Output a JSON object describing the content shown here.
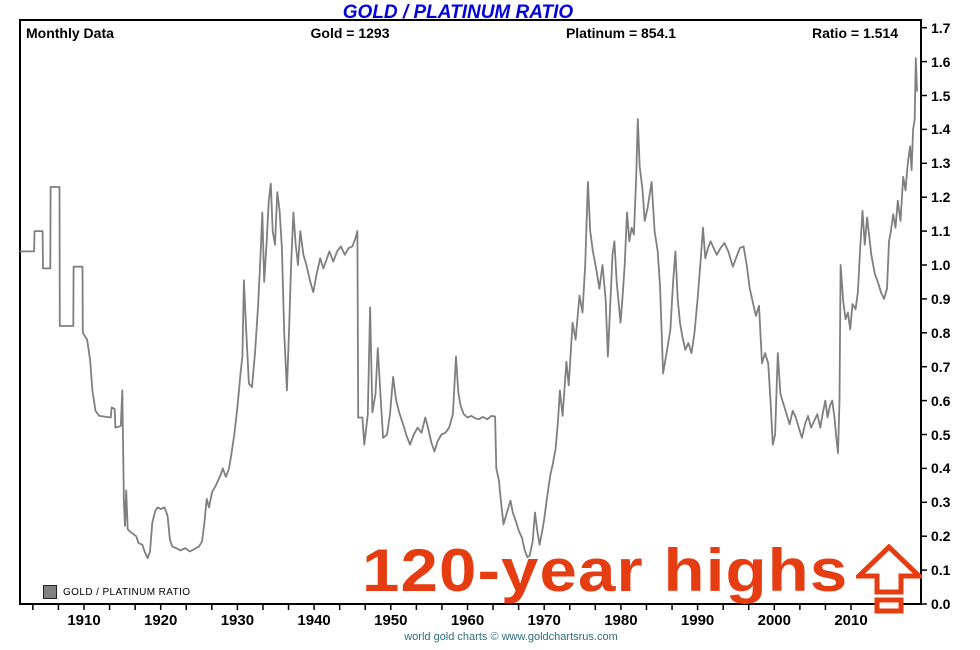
{
  "title": "GOLD / PLATINUM RATIO",
  "title_color": "#0202dd",
  "header": {
    "left_label": "Monthly Data",
    "gold": "Gold = 1293",
    "platinum": "Platinum = 854.1",
    "ratio": "Ratio = 1.514"
  },
  "legend": {
    "label": "GOLD / PLATINUM RATIO",
    "swatch_color": "#808080"
  },
  "annotation": {
    "text": "120-year highs",
    "color": "#e63c12",
    "icon": "up-arrow-icon"
  },
  "attribution": {
    "text": "world gold charts © www.goldchartsrus.com",
    "color": "#2d6d7d"
  },
  "chart_data": {
    "type": "line",
    "title": "GOLD / PLATINUM RATIO",
    "series_name": "GOLD / PLATINUM RATIO",
    "line_color": "#7f7f7f",
    "grid": false,
    "legend_position": "bottom-left",
    "ylim": [
      0.0,
      1.7
    ],
    "y_tick_step": 0.1,
    "y_axis_side": "right",
    "x_range_years": [
      1901.7,
      2018.6
    ],
    "x_tick_labels": [
      "1910",
      "1920",
      "1930",
      "1940",
      "1950",
      "1960",
      "1970",
      "1980",
      "1990",
      "2000",
      "2010"
    ],
    "xlabel": "",
    "ylabel": "",
    "points": [
      [
        1901.7,
        1.04
      ],
      [
        1903.5,
        1.04
      ],
      [
        1903.55,
        1.1
      ],
      [
        1904.6,
        1.1
      ],
      [
        1904.65,
        0.99
      ],
      [
        1905.6,
        0.99
      ],
      [
        1905.65,
        1.23
      ],
      [
        1906.8,
        1.23
      ],
      [
        1906.85,
        0.82
      ],
      [
        1908.6,
        0.82
      ],
      [
        1908.65,
        0.995
      ],
      [
        1909.8,
        0.995
      ],
      [
        1909.85,
        0.8
      ],
      [
        1910.4,
        0.78
      ],
      [
        1910.8,
        0.72
      ],
      [
        1911.1,
        0.63
      ],
      [
        1911.5,
        0.57
      ],
      [
        1912.0,
        0.555
      ],
      [
        1913.5,
        0.55
      ],
      [
        1913.6,
        0.58
      ],
      [
        1914.0,
        0.575
      ],
      [
        1914.1,
        0.52
      ],
      [
        1914.8,
        0.525
      ],
      [
        1915.0,
        0.63
      ],
      [
        1915.2,
        0.3
      ],
      [
        1915.35,
        0.23
      ],
      [
        1915.5,
        0.335
      ],
      [
        1915.7,
        0.22
      ],
      [
        1916.2,
        0.21
      ],
      [
        1916.8,
        0.2
      ],
      [
        1917.1,
        0.18
      ],
      [
        1917.6,
        0.175
      ],
      [
        1917.9,
        0.155
      ],
      [
        1918.3,
        0.135
      ],
      [
        1918.6,
        0.155
      ],
      [
        1918.9,
        0.24
      ],
      [
        1919.3,
        0.275
      ],
      [
        1919.6,
        0.285
      ],
      [
        1920.0,
        0.28
      ],
      [
        1920.5,
        0.285
      ],
      [
        1920.9,
        0.26
      ],
      [
        1921.2,
        0.19
      ],
      [
        1921.5,
        0.17
      ],
      [
        1922.0,
        0.165
      ],
      [
        1922.6,
        0.158
      ],
      [
        1923.2,
        0.165
      ],
      [
        1923.8,
        0.155
      ],
      [
        1924.4,
        0.162
      ],
      [
        1925.0,
        0.17
      ],
      [
        1925.4,
        0.185
      ],
      [
        1925.7,
        0.24
      ],
      [
        1926.0,
        0.31
      ],
      [
        1926.3,
        0.285
      ],
      [
        1926.7,
        0.33
      ],
      [
        1927.2,
        0.35
      ],
      [
        1927.8,
        0.38
      ],
      [
        1928.1,
        0.4
      ],
      [
        1928.5,
        0.375
      ],
      [
        1928.9,
        0.4
      ],
      [
        1929.2,
        0.44
      ],
      [
        1929.6,
        0.5
      ],
      [
        1930.0,
        0.58
      ],
      [
        1930.4,
        0.68
      ],
      [
        1930.65,
        0.73
      ],
      [
        1930.85,
        0.955
      ],
      [
        1931.1,
        0.83
      ],
      [
        1931.5,
        0.65
      ],
      [
        1931.9,
        0.64
      ],
      [
        1932.3,
        0.74
      ],
      [
        1932.7,
        0.88
      ],
      [
        1933.0,
        1.02
      ],
      [
        1933.25,
        1.155
      ],
      [
        1933.5,
        0.95
      ],
      [
        1933.8,
        1.06
      ],
      [
        1934.1,
        1.19
      ],
      [
        1934.35,
        1.24
      ],
      [
        1934.6,
        1.1
      ],
      [
        1934.9,
        1.06
      ],
      [
        1935.2,
        1.215
      ],
      [
        1935.5,
        1.16
      ],
      [
        1935.8,
        1.05
      ],
      [
        1936.1,
        0.8
      ],
      [
        1936.45,
        0.63
      ],
      [
        1936.75,
        0.82
      ],
      [
        1937.0,
        1.0
      ],
      [
        1937.3,
        1.155
      ],
      [
        1937.6,
        1.06
      ],
      [
        1937.9,
        1.0
      ],
      [
        1938.2,
        1.1
      ],
      [
        1938.6,
        1.03
      ],
      [
        1939.0,
        1.0
      ],
      [
        1939.5,
        0.95
      ],
      [
        1939.9,
        0.92
      ],
      [
        1940.3,
        0.97
      ],
      [
        1940.8,
        1.02
      ],
      [
        1941.2,
        0.99
      ],
      [
        1941.6,
        1.015
      ],
      [
        1942.0,
        1.04
      ],
      [
        1942.5,
        1.01
      ],
      [
        1943.0,
        1.04
      ],
      [
        1943.5,
        1.055
      ],
      [
        1944.0,
        1.03
      ],
      [
        1944.5,
        1.05
      ],
      [
        1945.0,
        1.055
      ],
      [
        1945.4,
        1.08
      ],
      [
        1945.65,
        1.1
      ],
      [
        1945.75,
        0.55
      ],
      [
        1946.3,
        0.55
      ],
      [
        1946.55,
        0.47
      ],
      [
        1947.0,
        0.56
      ],
      [
        1947.3,
        0.875
      ],
      [
        1947.6,
        0.565
      ],
      [
        1948.0,
        0.62
      ],
      [
        1948.3,
        0.755
      ],
      [
        1948.7,
        0.6
      ],
      [
        1949.0,
        0.49
      ],
      [
        1949.5,
        0.5
      ],
      [
        1949.9,
        0.56
      ],
      [
        1950.3,
        0.67
      ],
      [
        1950.7,
        0.6
      ],
      [
        1951.1,
        0.565
      ],
      [
        1951.6,
        0.53
      ],
      [
        1952.0,
        0.5
      ],
      [
        1952.5,
        0.47
      ],
      [
        1953.0,
        0.5
      ],
      [
        1953.5,
        0.52
      ],
      [
        1954.0,
        0.505
      ],
      [
        1954.5,
        0.55
      ],
      [
        1954.9,
        0.515
      ],
      [
        1955.3,
        0.475
      ],
      [
        1955.7,
        0.45
      ],
      [
        1956.1,
        0.48
      ],
      [
        1956.6,
        0.5
      ],
      [
        1957.1,
        0.505
      ],
      [
        1957.6,
        0.52
      ],
      [
        1958.1,
        0.56
      ],
      [
        1958.5,
        0.73
      ],
      [
        1958.8,
        0.625
      ],
      [
        1959.1,
        0.585
      ],
      [
        1959.5,
        0.56
      ],
      [
        1960.0,
        0.55
      ],
      [
        1960.5,
        0.555
      ],
      [
        1961.0,
        0.548
      ],
      [
        1961.5,
        0.545
      ],
      [
        1962.0,
        0.552
      ],
      [
        1962.6,
        0.545
      ],
      [
        1963.1,
        0.555
      ],
      [
        1963.6,
        0.553
      ],
      [
        1963.75,
        0.4
      ],
      [
        1964.1,
        0.365
      ],
      [
        1964.4,
        0.295
      ],
      [
        1964.7,
        0.235
      ],
      [
        1965.0,
        0.26
      ],
      [
        1965.35,
        0.285
      ],
      [
        1965.6,
        0.305
      ],
      [
        1965.9,
        0.27
      ],
      [
        1966.3,
        0.245
      ],
      [
        1966.7,
        0.215
      ],
      [
        1967.1,
        0.195
      ],
      [
        1967.45,
        0.16
      ],
      [
        1967.8,
        0.138
      ],
      [
        1968.1,
        0.142
      ],
      [
        1968.5,
        0.185
      ],
      [
        1968.8,
        0.27
      ],
      [
        1969.1,
        0.215
      ],
      [
        1969.4,
        0.175
      ],
      [
        1969.7,
        0.21
      ],
      [
        1970.0,
        0.25
      ],
      [
        1970.4,
        0.32
      ],
      [
        1970.8,
        0.38
      ],
      [
        1971.1,
        0.41
      ],
      [
        1971.5,
        0.46
      ],
      [
        1971.8,
        0.54
      ],
      [
        1972.05,
        0.63
      ],
      [
        1972.4,
        0.555
      ],
      [
        1972.9,
        0.715
      ],
      [
        1973.2,
        0.645
      ],
      [
        1973.7,
        0.83
      ],
      [
        1974.1,
        0.78
      ],
      [
        1974.6,
        0.91
      ],
      [
        1975.0,
        0.86
      ],
      [
        1975.35,
        1.0
      ],
      [
        1975.7,
        1.245
      ],
      [
        1976.0,
        1.1
      ],
      [
        1976.35,
        1.04
      ],
      [
        1976.8,
        0.985
      ],
      [
        1977.2,
        0.93
      ],
      [
        1977.6,
        1.0
      ],
      [
        1978.0,
        0.9
      ],
      [
        1978.3,
        0.73
      ],
      [
        1978.65,
        0.9
      ],
      [
        1978.9,
        1.03
      ],
      [
        1979.15,
        1.07
      ],
      [
        1979.45,
        0.95
      ],
      [
        1979.7,
        0.89
      ],
      [
        1979.95,
        0.83
      ],
      [
        1980.2,
        0.9
      ],
      [
        1980.5,
        1.0
      ],
      [
        1980.8,
        1.155
      ],
      [
        1981.1,
        1.07
      ],
      [
        1981.4,
        1.11
      ],
      [
        1981.7,
        1.09
      ],
      [
        1982.0,
        1.26
      ],
      [
        1982.2,
        1.43
      ],
      [
        1982.45,
        1.29
      ],
      [
        1982.8,
        1.225
      ],
      [
        1983.1,
        1.13
      ],
      [
        1983.5,
        1.17
      ],
      [
        1984.0,
        1.245
      ],
      [
        1984.4,
        1.1
      ],
      [
        1984.8,
        1.04
      ],
      [
        1985.1,
        0.94
      ],
      [
        1985.5,
        0.68
      ],
      [
        1985.8,
        0.72
      ],
      [
        1986.1,
        0.76
      ],
      [
        1986.45,
        0.81
      ],
      [
        1986.8,
        0.95
      ],
      [
        1987.1,
        1.04
      ],
      [
        1987.4,
        0.9
      ],
      [
        1987.7,
        0.83
      ],
      [
        1988.0,
        0.79
      ],
      [
        1988.4,
        0.75
      ],
      [
        1988.8,
        0.77
      ],
      [
        1989.2,
        0.74
      ],
      [
        1989.6,
        0.8
      ],
      [
        1990.0,
        0.9
      ],
      [
        1990.35,
        1.0
      ],
      [
        1990.7,
        1.11
      ],
      [
        1991.0,
        1.02
      ],
      [
        1991.35,
        1.05
      ],
      [
        1991.7,
        1.07
      ],
      [
        1992.1,
        1.05
      ],
      [
        1992.5,
        1.03
      ],
      [
        1993.0,
        1.05
      ],
      [
        1993.5,
        1.065
      ],
      [
        1994.0,
        1.04
      ],
      [
        1994.6,
        0.995
      ],
      [
        1995.0,
        1.02
      ],
      [
        1995.5,
        1.05
      ],
      [
        1996.0,
        1.055
      ],
      [
        1996.4,
        1.0
      ],
      [
        1996.8,
        0.93
      ],
      [
        1997.3,
        0.88
      ],
      [
        1997.6,
        0.85
      ],
      [
        1998.0,
        0.88
      ],
      [
        1998.4,
        0.71
      ],
      [
        1998.8,
        0.74
      ],
      [
        1999.2,
        0.71
      ],
      [
        1999.5,
        0.6
      ],
      [
        1999.8,
        0.47
      ],
      [
        2000.1,
        0.5
      ],
      [
        2000.45,
        0.74
      ],
      [
        2000.8,
        0.62
      ],
      [
        2001.2,
        0.59
      ],
      [
        2001.6,
        0.56
      ],
      [
        2002.0,
        0.53
      ],
      [
        2002.4,
        0.57
      ],
      [
        2002.8,
        0.55
      ],
      [
        2003.2,
        0.52
      ],
      [
        2003.6,
        0.49
      ],
      [
        2004.0,
        0.53
      ],
      [
        2004.4,
        0.555
      ],
      [
        2004.8,
        0.52
      ],
      [
        2005.2,
        0.54
      ],
      [
        2005.6,
        0.56
      ],
      [
        2006.0,
        0.52
      ],
      [
        2006.3,
        0.56
      ],
      [
        2006.65,
        0.6
      ],
      [
        2006.95,
        0.55
      ],
      [
        2007.25,
        0.585
      ],
      [
        2007.55,
        0.6
      ],
      [
        2007.85,
        0.55
      ],
      [
        2008.05,
        0.5
      ],
      [
        2008.3,
        0.445
      ],
      [
        2008.5,
        0.6
      ],
      [
        2008.65,
        1.0
      ],
      [
        2009.0,
        0.89
      ],
      [
        2009.3,
        0.84
      ],
      [
        2009.6,
        0.86
      ],
      [
        2009.9,
        0.81
      ],
      [
        2010.2,
        0.885
      ],
      [
        2010.6,
        0.87
      ],
      [
        2010.9,
        0.92
      ],
      [
        2011.2,
        1.05
      ],
      [
        2011.5,
        1.16
      ],
      [
        2011.8,
        1.06
      ],
      [
        2012.1,
        1.14
      ],
      [
        2012.4,
        1.08
      ],
      [
        2012.65,
        1.03
      ],
      [
        2013.1,
        0.975
      ],
      [
        2013.5,
        0.95
      ],
      [
        2013.9,
        0.92
      ],
      [
        2014.3,
        0.9
      ],
      [
        2014.7,
        0.93
      ],
      [
        2014.95,
        1.07
      ],
      [
        2015.2,
        1.1
      ],
      [
        2015.5,
        1.15
      ],
      [
        2015.8,
        1.11
      ],
      [
        2016.1,
        1.19
      ],
      [
        2016.45,
        1.13
      ],
      [
        2016.8,
        1.26
      ],
      [
        2017.1,
        1.22
      ],
      [
        2017.4,
        1.3
      ],
      [
        2017.7,
        1.35
      ],
      [
        2017.9,
        1.28
      ],
      [
        2018.1,
        1.4
      ],
      [
        2018.3,
        1.43
      ],
      [
        2018.45,
        1.61
      ],
      [
        2018.6,
        1.514
      ]
    ]
  }
}
